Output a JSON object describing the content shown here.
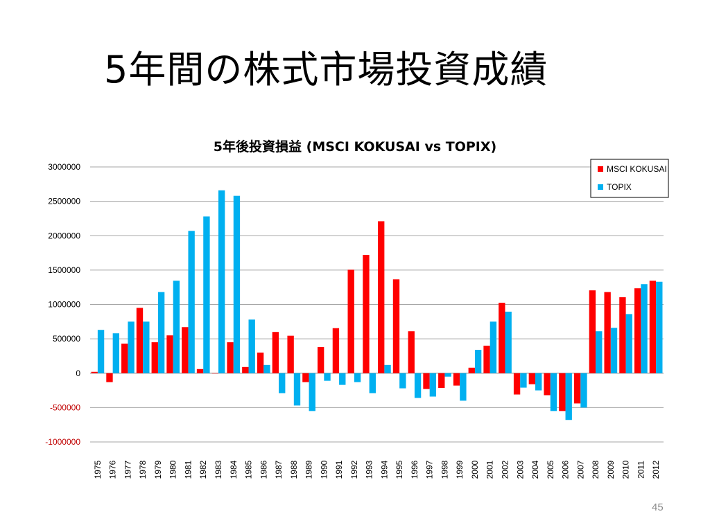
{
  "slide": {
    "title": "5年間の株式市場投資成績",
    "page_number": "45"
  },
  "colors": {
    "msci": "#ff0000",
    "topix": "#00b0f0",
    "negative_tick": "#c00000",
    "grid": "#a6a6a6"
  },
  "chart_data": {
    "type": "bar",
    "title": "5年後投資損益 (MSCI KOKUSAI vs TOPIX)",
    "xlabel": "",
    "ylabel": "",
    "ylim": [
      -1000000,
      3000000
    ],
    "yticks": [
      "3000000",
      "2500000",
      "2000000",
      "1500000",
      "1000000",
      "500000",
      "0",
      "-500000",
      "-1000000"
    ],
    "grid": true,
    "legend": "top-right",
    "categories": [
      "1975",
      "1976",
      "1977",
      "1978",
      "1979",
      "1980",
      "1981",
      "1982",
      "1983",
      "1984",
      "1985",
      "1986",
      "1987",
      "1988",
      "1989",
      "1990",
      "1991",
      "1992",
      "1993",
      "1994",
      "1995",
      "1996",
      "1997",
      "1998",
      "1999",
      "2000",
      "2001",
      "2002",
      "2003",
      "2004",
      "2005",
      "2006",
      "2007",
      "2008",
      "2009",
      "2010",
      "2011",
      "2012"
    ],
    "series": [
      {
        "name": "MSCI KOKUSAI",
        "values": [
          20000,
          -130000,
          430000,
          950000,
          450000,
          550000,
          670000,
          60000,
          0,
          450000,
          90000,
          300000,
          600000,
          545000,
          -130000,
          380000,
          655000,
          1505000,
          1720000,
          2210000,
          1365000,
          610000,
          -230000,
          -215000,
          -180000,
          80000,
          400000,
          1025000,
          -310000,
          -160000,
          -320000,
          -550000,
          -440000,
          1205000,
          1180000,
          1105000,
          1235000,
          1345000
        ]
      },
      {
        "name": "TOPIX",
        "values": [
          630000,
          580000,
          750000,
          750000,
          1180000,
          1345000,
          2070000,
          2280000,
          2660000,
          2580000,
          780000,
          120000,
          -290000,
          -470000,
          -550000,
          -110000,
          -170000,
          -130000,
          -290000,
          120000,
          -220000,
          -360000,
          -340000,
          -50000,
          -400000,
          340000,
          750000,
          895000,
          -210000,
          -250000,
          -550000,
          -680000,
          -500000,
          610000,
          660000,
          860000,
          1295000,
          1330000
        ]
      }
    ]
  }
}
